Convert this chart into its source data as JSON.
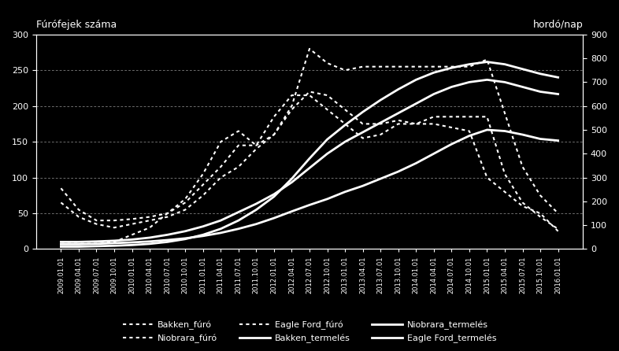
{
  "title_left": "Fúrófejek száma",
  "title_right": "hordó/nap",
  "background": "#000000",
  "text_color": "#ffffff",
  "ylim_left": [
    0,
    300
  ],
  "ylim_right": [
    0,
    900
  ],
  "yticks_left": [
    0,
    50,
    100,
    150,
    200,
    250,
    300
  ],
  "yticks_right": [
    0,
    100,
    200,
    300,
    400,
    500,
    600,
    700,
    800,
    900
  ],
  "dates": [
    "2009.01.01",
    "2009.04.01",
    "2009.07.01",
    "2009.10.01",
    "2010.01.01",
    "2010.04.01",
    "2010.07.01",
    "2010.10.01",
    "2011.01.01",
    "2011.04.01",
    "2011.07.01",
    "2011.10.01",
    "2012.01.01",
    "2012.04.01",
    "2012.07.01",
    "2012.10.01",
    "2013.01.01",
    "2013.04.01",
    "2013.07.01",
    "2013.10.01",
    "2014.01.01",
    "2014.04.01",
    "2014.07.01",
    "2014.10.01",
    "2015.01.01",
    "2015.04.01",
    "2015.07.01",
    "2015.10.01",
    "2016.01.01"
  ],
  "bakken_furo": [
    85,
    55,
    40,
    40,
    42,
    45,
    50,
    65,
    90,
    115,
    145,
    145,
    160,
    195,
    220,
    215,
    195,
    175,
    175,
    180,
    175,
    185,
    185,
    185,
    185,
    105,
    65,
    45,
    28
  ],
  "niobrara_furo": [
    65,
    45,
    35,
    30,
    35,
    40,
    45,
    55,
    75,
    100,
    115,
    140,
    160,
    200,
    280,
    260,
    250,
    255,
    255,
    255,
    255,
    255,
    255,
    255,
    265,
    190,
    115,
    75,
    50
  ],
  "eagle_ford_furo": [
    10,
    10,
    10,
    10,
    20,
    30,
    50,
    70,
    105,
    150,
    165,
    145,
    185,
    215,
    215,
    195,
    175,
    155,
    160,
    175,
    175,
    175,
    170,
    165,
    100,
    80,
    60,
    50,
    25
  ],
  "bakken_termeles": [
    30,
    30,
    32,
    35,
    40,
    48,
    60,
    75,
    95,
    120,
    155,
    190,
    230,
    280,
    340,
    400,
    450,
    490,
    530,
    570,
    610,
    650,
    680,
    700,
    710,
    700,
    680,
    660,
    650
  ],
  "niobrara_termeles": [
    20,
    20,
    22,
    25,
    28,
    32,
    38,
    45,
    55,
    68,
    85,
    105,
    130,
    158,
    185,
    210,
    240,
    265,
    295,
    325,
    360,
    400,
    440,
    475,
    500,
    495,
    480,
    462,
    455
  ],
  "eagle_ford_termeles": [
    10,
    10,
    12,
    14,
    17,
    22,
    30,
    42,
    60,
    85,
    120,
    165,
    220,
    295,
    380,
    460,
    520,
    575,
    625,
    670,
    710,
    740,
    760,
    775,
    785,
    775,
    755,
    735,
    720
  ],
  "xtick_labels": [
    "2009.01.01",
    "2009.04.01",
    "2009.07.01",
    "2009.10.01",
    "2010.01.01",
    "2010.04.01",
    "2010.07.01",
    "2010.10.01",
    "2011.01.01",
    "2011.04.01",
    "2011.07.01",
    "2011.10.01",
    "2012.01.01",
    "2012.04.01",
    "2012.07.01",
    "2012.10.01",
    "2013.01.01",
    "2013.04.01",
    "2013.07.01",
    "2013.10.01",
    "2014.01.01",
    "2014.04.01",
    "2014.07.01",
    "2014.10.01",
    "2015.01.01",
    "2015.04.01",
    "2015.07.01",
    "2015.10.01",
    "2016.01.01"
  ],
  "legend_row1": [
    "Bakken_fúró",
    "Niobrara_fúró",
    "Eagle Ford_fúró"
  ],
  "legend_row2": [
    "Bakken_termelés",
    "Niobrara_termelés",
    "Eagle Ford_termelés"
  ]
}
